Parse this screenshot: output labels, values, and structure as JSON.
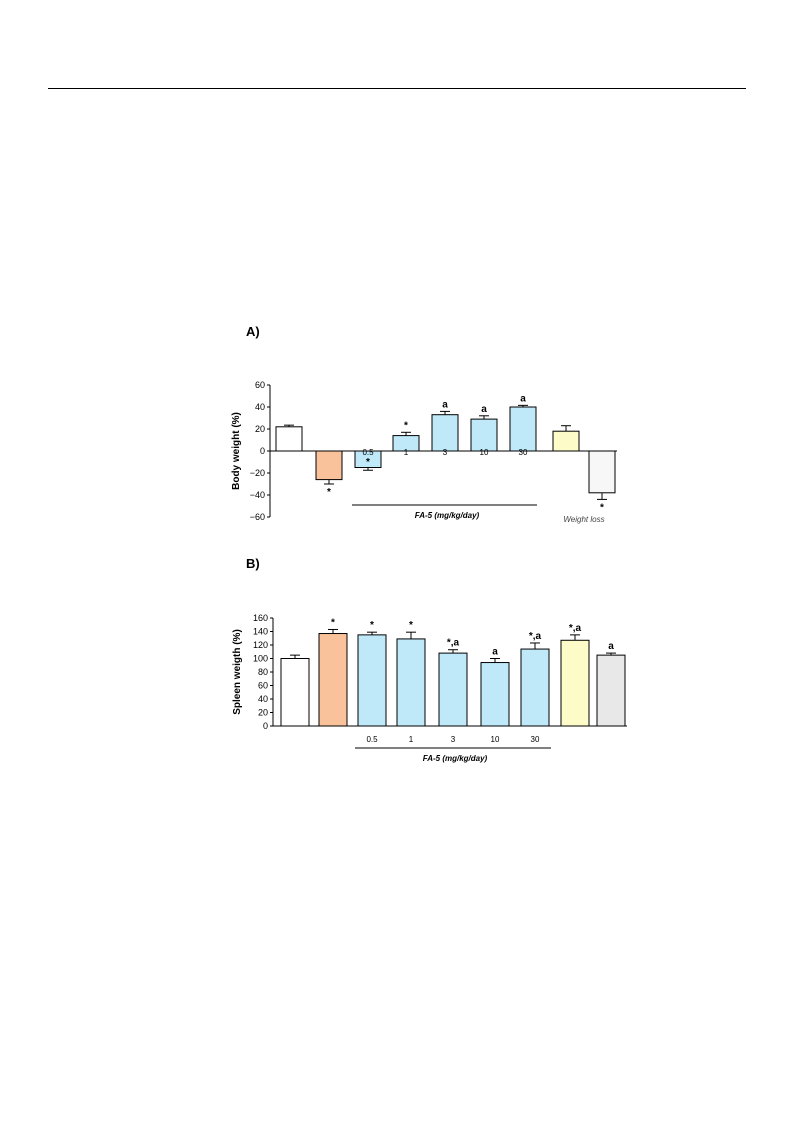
{
  "panels": {
    "a_label": "A)",
    "b_label": "B)"
  },
  "chart_data": [
    {
      "type": "bar",
      "panel": "A)",
      "ylabel": "Body weight (%)",
      "ylim": [
        -60,
        60
      ],
      "yticks": [
        "60",
        "40",
        "20",
        "0",
        "−20",
        "−40",
        "−60"
      ],
      "categories": [
        "",
        "",
        "0.5",
        "1",
        "3",
        "10",
        "30",
        "",
        ""
      ],
      "values": [
        22,
        -26,
        -15,
        14,
        33,
        29,
        40,
        18,
        -38
      ],
      "errors": [
        1.5,
        4,
        2.5,
        3,
        3,
        3,
        1.5,
        5,
        6
      ],
      "annotations": [
        "",
        "*",
        "*",
        "*",
        "a",
        "a",
        "a",
        "",
        "*"
      ],
      "colors": [
        "#ffffff",
        "#f9c29a",
        "#bfe9f9",
        "#bfe9f9",
        "#bfe9f9",
        "#bfe9f9",
        "#bfe9f9",
        "#fdfbc8",
        "#f7f7f7"
      ],
      "group_label": "FA-5 (mg/kg/day)",
      "extra_label": "Weight loss",
      "grid": false
    },
    {
      "type": "bar",
      "panel": "B)",
      "ylabel": "Spleen weigth (%)",
      "ylim": [
        0,
        160
      ],
      "yticks": [
        "160",
        "140",
        "120",
        "100",
        "80",
        "60",
        "40",
        "20",
        "0"
      ],
      "categories": [
        "",
        "",
        "0.5",
        "1",
        "3",
        "10",
        "30",
        "",
        ""
      ],
      "values": [
        100,
        137,
        135,
        129,
        108,
        94,
        114,
        127,
        105
      ],
      "errors": [
        5,
        6,
        4,
        10,
        5,
        6,
        9,
        8,
        3
      ],
      "annotations": [
        "",
        "*",
        "*",
        "*",
        "*,a",
        "a",
        "*,a",
        "*,a",
        "a"
      ],
      "colors": [
        "#ffffff",
        "#f9c29a",
        "#bfe9f9",
        "#bfe9f9",
        "#bfe9f9",
        "#bfe9f9",
        "#bfe9f9",
        "#fdfbc8",
        "#e8e8e8"
      ],
      "group_label": "FA-5 (mg/kg/day)",
      "grid": false
    }
  ]
}
